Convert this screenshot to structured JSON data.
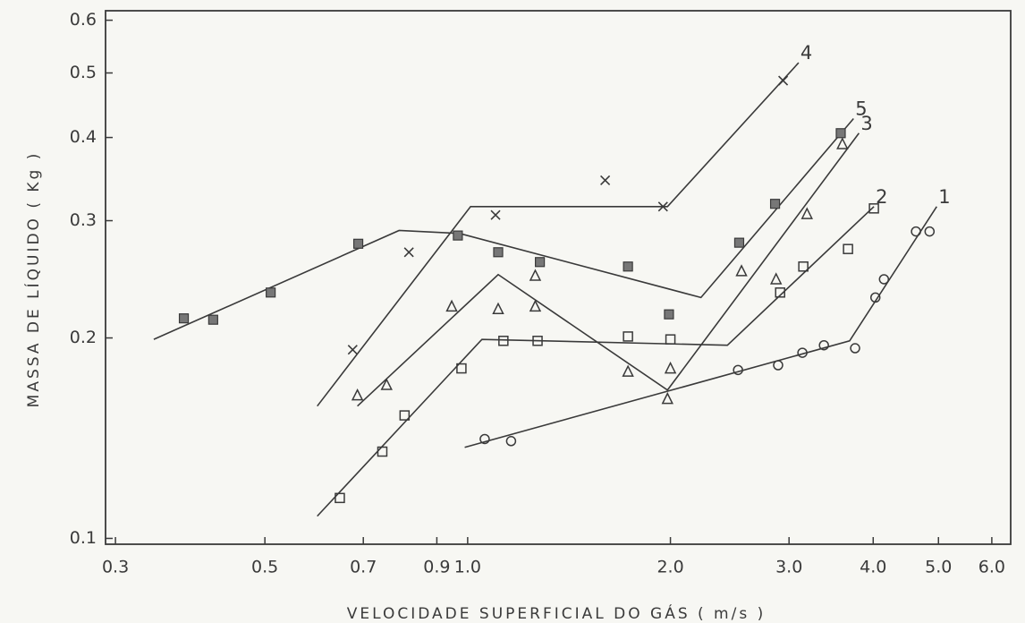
{
  "chart_data": {
    "type": "scatter",
    "xlabel": "VELOCIDADE  SUPERFICIAL  DO  GÁS  ( m/s )",
    "ylabel": "MASSA  DE  LÍQUIDO  ( Kg )",
    "xscale": "log",
    "yscale": "log",
    "xlim": [
      0.29,
      6.4
    ],
    "ylim": [
      0.098,
      0.62
    ],
    "xticks": [
      0.3,
      0.5,
      0.7,
      0.9,
      {
        "value": 1,
        "label": "1.0"
      },
      {
        "value": 2,
        "label": "2.0"
      },
      {
        "value": 3,
        "label": "3.0"
      },
      {
        "value": 4,
        "label": "4.0"
      },
      {
        "value": 5,
        "label": "5.0"
      },
      {
        "value": 6,
        "label": "6.0"
      }
    ],
    "yticks": [
      0.1,
      0.2,
      0.3,
      0.4,
      0.5,
      0.6
    ],
    "color": "#3a3a3a",
    "series": [
      {
        "name": "1",
        "marker": "circle",
        "x": [
          1.06,
          1.16,
          2.52,
          2.89,
          3.14,
          3.38,
          3.76,
          4.03,
          4.15,
          4.63,
          4.85
        ],
        "values": [
          0.141,
          0.14,
          0.179,
          0.182,
          0.19,
          0.195,
          0.193,
          0.23,
          0.245,
          0.289,
          0.289
        ],
        "line_x": [
          0.99,
          3.69,
          4.97
        ],
        "line_y": [
          0.137,
          0.198,
          0.315
        ]
      },
      {
        "name": "2",
        "marker": "square",
        "x": [
          0.646,
          0.747,
          0.806,
          0.979,
          1.13,
          1.27,
          1.73,
          2.0,
          2.91,
          3.15,
          3.67,
          4.01
        ],
        "values": [
          0.115,
          0.135,
          0.153,
          0.18,
          0.198,
          0.198,
          0.201,
          0.199,
          0.234,
          0.256,
          0.272,
          0.313
        ],
        "line_x": [
          0.598,
          1.05,
          2.43,
          4.01
        ],
        "line_y": [
          0.108,
          0.199,
          0.195,
          0.315
        ]
      },
      {
        "name": "3",
        "marker": "triangle",
        "x": [
          0.686,
          0.758,
          0.947,
          1.11,
          1.26,
          1.26,
          1.73,
          2.0,
          1.98,
          2.55,
          2.87,
          3.19,
          3.6
        ],
        "values": [
          0.164,
          0.17,
          0.223,
          0.221,
          0.248,
          0.223,
          0.178,
          0.18,
          0.162,
          0.252,
          0.245,
          0.307,
          0.391
        ],
        "line_x": [
          0.686,
          1.11,
          1.98,
          3.81
        ],
        "line_y": [
          0.158,
          0.249,
          0.167,
          0.406
        ]
      },
      {
        "name": "4",
        "marker": "cross",
        "x": [
          0.675,
          0.818,
          1.1,
          1.6,
          1.95,
          2.94
        ],
        "values": [
          0.192,
          0.269,
          0.306,
          0.345,
          0.315,
          0.487
        ],
        "line_x": [
          0.598,
          1.01,
          1.98,
          3.1
        ],
        "line_y": [
          0.158,
          0.315,
          0.315,
          0.518
        ]
      },
      {
        "name": "5",
        "marker": "filled-square",
        "x": [
          0.379,
          0.419,
          0.51,
          0.688,
          0.967,
          1.11,
          1.28,
          1.73,
          1.99,
          2.53,
          2.86,
          3.58
        ],
        "values": [
          0.214,
          0.213,
          0.234,
          0.277,
          0.285,
          0.269,
          0.26,
          0.256,
          0.217,
          0.278,
          0.318,
          0.406
        ],
        "line_x": [
          0.342,
          0.791,
          0.973,
          2.22,
          3.74
        ],
        "line_y": [
          0.199,
          0.29,
          0.287,
          0.23,
          0.427
        ]
      }
    ]
  }
}
